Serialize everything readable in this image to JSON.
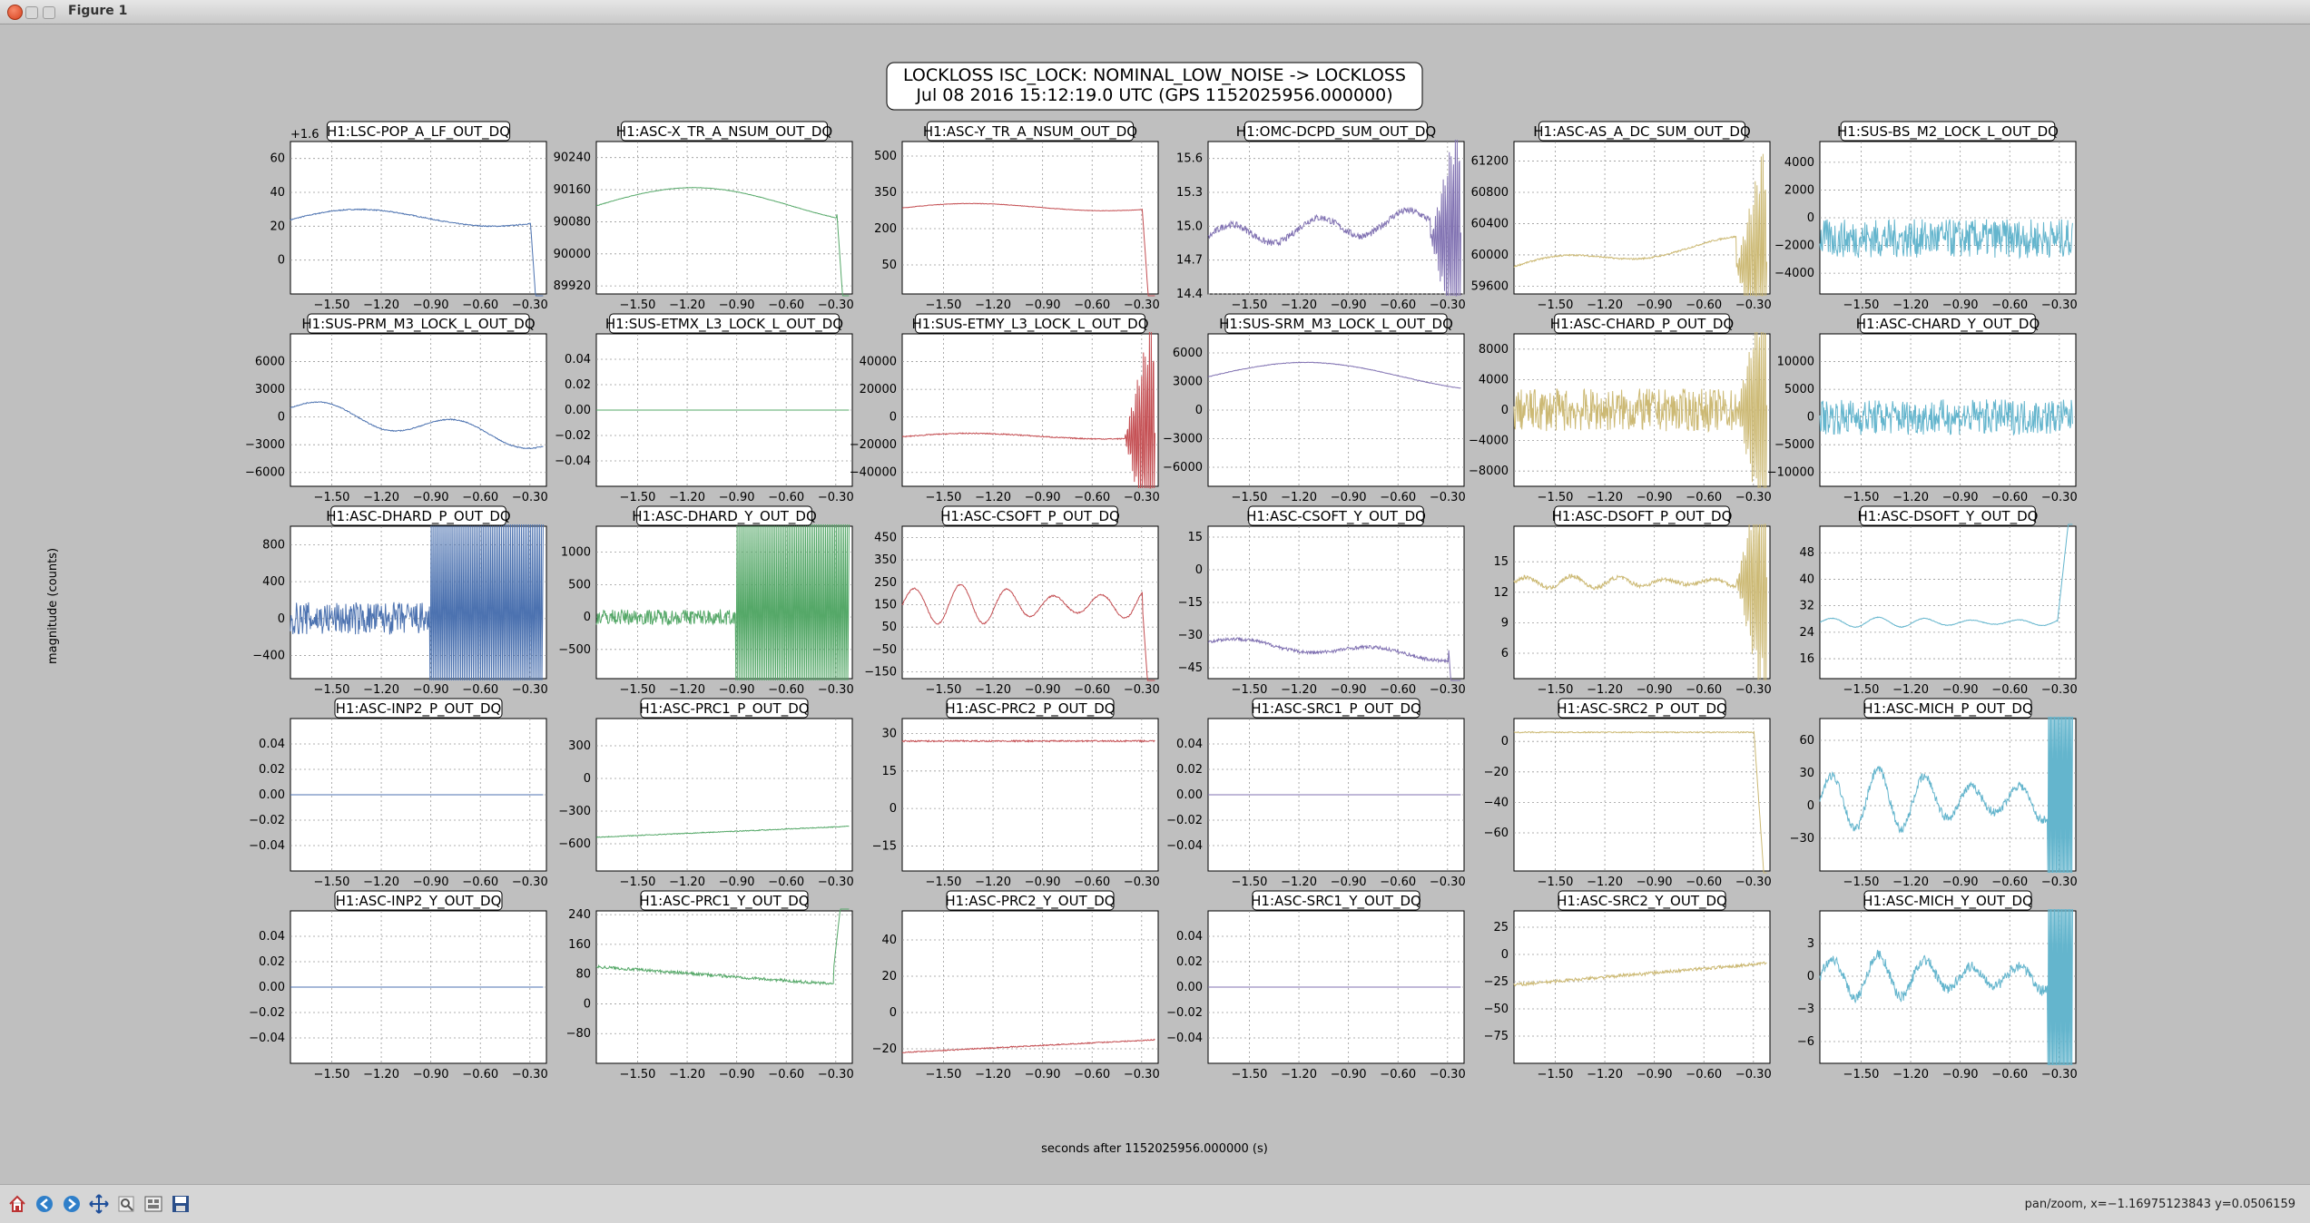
{
  "window": {
    "title": "Figure 1"
  },
  "status": {
    "text": "pan/zoom, x=−1.16975123843 y=0.0506159"
  },
  "toolbar": {
    "icons": [
      "home-icon",
      "back-icon",
      "forward-icon",
      "pan-icon",
      "zoom-icon",
      "subplots-icon",
      "save-icon"
    ]
  },
  "chart_data": {
    "type": "line",
    "suptitle": [
      "LOCKLOSS ISC_LOCK: NOMINAL_LOW_NOISE -> LOCKLOSS",
      "Jul 08 2016 15:12:19.0 UTC (GPS 1152025956.000000)"
    ],
    "xlabel": "seconds after 1152025956.000000 (s)",
    "ylabel": "magnitude (counts)",
    "xlim": [
      -1.75,
      -0.2
    ],
    "xticks": [
      -1.5,
      -1.2,
      -0.9,
      -0.6,
      -0.3
    ],
    "grid": true,
    "subplots": [
      {
        "title": "H1:LSC-POP_A_LF_OUT_DQ",
        "color": "#4c72b0",
        "offset": "+1.6",
        "yticks": [
          0,
          20,
          40,
          60
        ],
        "ylim": [
          -20,
          70
        ],
        "gen": "wave",
        "base": 22,
        "amp": 10,
        "noise": 0.3,
        "end": "drop"
      },
      {
        "title": "H1:ASC-X_TR_A_NSUM_OUT_DQ",
        "color": "#55a868",
        "yticks": [
          89920,
          90000,
          90080,
          90160,
          90240
        ],
        "ylim": [
          89900,
          90280
        ],
        "gen": "hump",
        "base": 90120,
        "amp": 45,
        "noise": 0.5,
        "end": "drop"
      },
      {
        "title": "H1:ASC-Y_TR_A_NSUM_OUT_DQ",
        "color": "#c44e52",
        "yticks": [
          50,
          200,
          350,
          500
        ],
        "ylim": [
          -70,
          560
        ],
        "gen": "wave",
        "base": 280,
        "amp": 30,
        "noise": 1,
        "end": "drop"
      },
      {
        "title": "H1:OMC-DCPD_SUM_OUT_DQ",
        "color": "#8172b2",
        "yticks": [
          14.4,
          14.7,
          15.0,
          15.3,
          15.6
        ],
        "ylim": [
          14.4,
          15.75
        ],
        "gen": "wiggle",
        "base": 14.9,
        "amp": 0.12,
        "noise": 0.03,
        "end": "osc"
      },
      {
        "title": "H1:ASC-AS_A_DC_SUM_OUT_DQ",
        "color": "#ccb974",
        "yticks": [
          59600,
          60000,
          60400,
          60800,
          61200
        ],
        "ylim": [
          59500,
          61450
        ],
        "gen": "rise",
        "base": 59850,
        "amp": 250,
        "noise": 10,
        "end": "osc"
      },
      {
        "title": "H1:SUS-BS_M2_LOCK_L_OUT_DQ",
        "color": "#64b5cd",
        "yticks": [
          -4000,
          -2000,
          0,
          2000,
          4000
        ],
        "ylim": [
          -5500,
          5500
        ],
        "gen": "noise",
        "base": -1500,
        "amp": 0,
        "noise": 1400,
        "end": "none"
      },
      {
        "title": "H1:SUS-PRM_M3_LOCK_L_OUT_DQ",
        "color": "#4c72b0",
        "yticks": [
          -6000,
          -3000,
          0,
          3000,
          6000
        ],
        "ylim": [
          -7500,
          9000
        ],
        "gen": "fall",
        "base": 1000,
        "amp": 3000,
        "noise": 50,
        "end": "none"
      },
      {
        "title": "H1:SUS-ETMX_L3_LOCK_L_OUT_DQ",
        "color": "#55a868",
        "yticks": [
          -0.04,
          -0.02,
          0.0,
          0.02,
          0.04
        ],
        "ylim": [
          -0.06,
          0.06
        ],
        "gen": "flat",
        "base": 0,
        "amp": 0,
        "noise": 0,
        "end": "none"
      },
      {
        "title": "H1:SUS-ETMY_L3_LOCK_L_OUT_DQ",
        "color": "#c44e52",
        "yticks": [
          -40000,
          -20000,
          0,
          20000,
          40000
        ],
        "ylim": [
          -50000,
          60000
        ],
        "gen": "wave",
        "base": -15000,
        "amp": 4000,
        "noise": 400,
        "end": "osc"
      },
      {
        "title": "H1:SUS-SRM_M3_LOCK_L_OUT_DQ",
        "color": "#8172b2",
        "yticks": [
          -6000,
          -3000,
          0,
          3000,
          6000
        ],
        "ylim": [
          -8000,
          8000
        ],
        "gen": "hump",
        "base": 3500,
        "amp": 1500,
        "noise": 30,
        "end": "none"
      },
      {
        "title": "H1:ASC-CHARD_P_OUT_DQ",
        "color": "#ccb974",
        "yticks": [
          -8000,
          -4000,
          0,
          4000,
          8000
        ],
        "ylim": [
          -10000,
          10000
        ],
        "gen": "noise",
        "base": 0,
        "amp": 0,
        "noise": 2800,
        "end": "osc"
      },
      {
        "title": "H1:ASC-CHARD_Y_OUT_DQ",
        "color": "#64b5cd",
        "yticks": [
          -10000,
          -5000,
          0,
          5000,
          10000
        ],
        "ylim": [
          -12500,
          15000
        ],
        "gen": "noise",
        "base": 0,
        "amp": 0,
        "noise": 3200,
        "end": "none"
      },
      {
        "title": "H1:ASC-DHARD_P_OUT_DQ",
        "color": "#4c72b0",
        "yticks": [
          -400,
          0,
          400,
          800
        ],
        "ylim": [
          -650,
          1000
        ],
        "gen": "noise",
        "base": 0,
        "amp": 0,
        "noise": 180,
        "end": "oscbig"
      },
      {
        "title": "H1:ASC-DHARD_Y_OUT_DQ",
        "color": "#55a868",
        "yticks": [
          -500,
          0,
          500,
          1000
        ],
        "ylim": [
          -950,
          1400
        ],
        "gen": "noise",
        "base": 0,
        "amp": 0,
        "noise": 120,
        "end": "oscbig"
      },
      {
        "title": "H1:ASC-CSOFT_P_OUT_DQ",
        "color": "#c44e52",
        "yticks": [
          -150,
          -50,
          50,
          150,
          250,
          350,
          450
        ],
        "ylim": [
          -180,
          500
        ],
        "gen": "osc",
        "base": 150,
        "amp": 90,
        "noise": 3,
        "end": "drop"
      },
      {
        "title": "H1:ASC-CSOFT_Y_OUT_DQ",
        "color": "#8172b2",
        "yticks": [
          -45,
          -30,
          -15,
          0,
          15
        ],
        "ylim": [
          -50,
          20
        ],
        "gen": "fall",
        "base": -33,
        "amp": 6,
        "noise": 0.8,
        "end": "drop"
      },
      {
        "title": "H1:ASC-DSOFT_P_OUT_DQ",
        "color": "#ccb974",
        "yticks": [
          6,
          9,
          12,
          15
        ],
        "ylim": [
          3.5,
          18.5
        ],
        "gen": "osc",
        "base": 13,
        "amp": 0.6,
        "noise": 0.2,
        "end": "osc"
      },
      {
        "title": "H1:ASC-DSOFT_Y_OUT_DQ",
        "color": "#64b5cd",
        "yticks": [
          16,
          24,
          32,
          40,
          48
        ],
        "ylim": [
          10,
          56
        ],
        "gen": "osc",
        "base": 27,
        "amp": 1.5,
        "noise": 0.1,
        "end": "rise"
      },
      {
        "title": "H1:ASC-INP2_P_OUT_DQ",
        "color": "#4c72b0",
        "yticks": [
          -0.04,
          -0.02,
          0.0,
          0.02,
          0.04
        ],
        "ylim": [
          -0.06,
          0.06
        ],
        "gen": "flat",
        "base": 0,
        "amp": 0,
        "noise": 0,
        "end": "none"
      },
      {
        "title": "H1:ASC-PRC1_P_OUT_DQ",
        "color": "#55a868",
        "yticks": [
          -600,
          -300,
          0,
          300
        ],
        "ylim": [
          -850,
          550
        ],
        "gen": "lin",
        "base": -540,
        "amp": 100,
        "noise": 4,
        "end": "none"
      },
      {
        "title": "H1:ASC-PRC2_P_OUT_DQ",
        "color": "#c44e52",
        "yticks": [
          -15,
          0,
          15,
          30
        ],
        "ylim": [
          -25,
          36
        ],
        "gen": "flat",
        "base": 27,
        "amp": 0,
        "noise": 0.3,
        "end": "none"
      },
      {
        "title": "H1:ASC-SRC1_P_OUT_DQ",
        "color": "#8172b2",
        "yticks": [
          -0.04,
          -0.02,
          0.0,
          0.02,
          0.04
        ],
        "ylim": [
          -0.06,
          0.06
        ],
        "gen": "flat",
        "base": 0,
        "amp": 0,
        "noise": 0,
        "end": "none"
      },
      {
        "title": "H1:ASC-SRC2_P_OUT_DQ",
        "color": "#ccb974",
        "yticks": [
          -60,
          -40,
          -20,
          0
        ],
        "ylim": [
          -85,
          15
        ],
        "gen": "flat",
        "base": 6,
        "amp": 1,
        "noise": 0.4,
        "end": "drop"
      },
      {
        "title": "H1:ASC-MICH_P_OUT_DQ",
        "color": "#64b5cd",
        "yticks": [
          -30,
          0,
          30,
          60
        ],
        "ylim": [
          -60,
          80
        ],
        "gen": "osc",
        "base": 5,
        "amp": 28,
        "noise": 4,
        "end": "oscbig"
      },
      {
        "title": "H1:ASC-INP2_Y_OUT_DQ",
        "color": "#4c72b0",
        "yticks": [
          -0.04,
          -0.02,
          0.0,
          0.02,
          0.04
        ],
        "ylim": [
          -0.06,
          0.06
        ],
        "gen": "flat",
        "base": 0,
        "amp": 0,
        "noise": 0,
        "end": "none"
      },
      {
        "title": "H1:ASC-PRC1_Y_OUT_DQ",
        "color": "#55a868",
        "yticks": [
          -80,
          0,
          80,
          160,
          240
        ],
        "ylim": [
          -160,
          250
        ],
        "gen": "lin",
        "base": 100,
        "amp": -50,
        "noise": 4,
        "end": "rise"
      },
      {
        "title": "H1:ASC-PRC2_Y_OUT_DQ",
        "color": "#c44e52",
        "yticks": [
          -20,
          0,
          20,
          40
        ],
        "ylim": [
          -28,
          56
        ],
        "gen": "lin",
        "base": -22,
        "amp": 7,
        "noise": 0.3,
        "end": "none"
      },
      {
        "title": "H1:ASC-SRC1_Y_OUT_DQ",
        "color": "#8172b2",
        "yticks": [
          -0.04,
          -0.02,
          0.0,
          0.02,
          0.04
        ],
        "ylim": [
          -0.06,
          0.06
        ],
        "gen": "flat",
        "base": 0,
        "amp": 0,
        "noise": 0,
        "end": "none"
      },
      {
        "title": "H1:ASC-SRC2_Y_OUT_DQ",
        "color": "#ccb974",
        "yticks": [
          -75,
          -50,
          -25,
          0,
          25
        ],
        "ylim": [
          -100,
          40
        ],
        "gen": "lin",
        "base": -28,
        "amp": 20,
        "noise": 1.5,
        "end": "none"
      },
      {
        "title": "H1:ASC-MICH_Y_OUT_DQ",
        "color": "#64b5cd",
        "yticks": [
          -6,
          -3,
          0,
          3
        ],
        "ylim": [
          -8,
          6
        ],
        "gen": "osc",
        "base": 0,
        "amp": 2,
        "noise": 0.5,
        "end": "oscbig"
      }
    ]
  }
}
